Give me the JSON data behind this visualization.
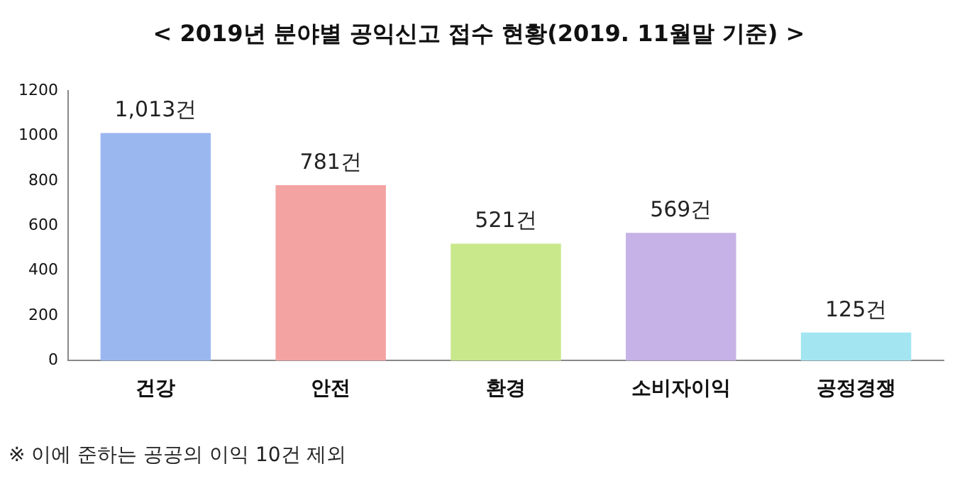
{
  "chart_data": {
    "type": "bar",
    "title": "< 2019년 분야별 공익신고 접수 현황(2019. 11월말 기준) >",
    "categories": [
      "건강",
      "안전",
      "환경",
      "소비자이익",
      "공정경쟁"
    ],
    "values": [
      1013,
      781,
      521,
      569,
      125
    ],
    "colors": [
      "#9bb7f0",
      "#f4a3a3",
      "#c9e88c",
      "#c6b2e6",
      "#a3e6f2"
    ],
    "value_labels": [
      "1,013건",
      "781건",
      "521건",
      "569건",
      "125건"
    ],
    "ylim": [
      0,
      1200
    ],
    "yticks": [
      0,
      200,
      400,
      600,
      800,
      1000,
      1200
    ],
    "grid": false,
    "annotations": [
      "※ 이에 준하는 공공의 이익 10건 제외"
    ]
  }
}
